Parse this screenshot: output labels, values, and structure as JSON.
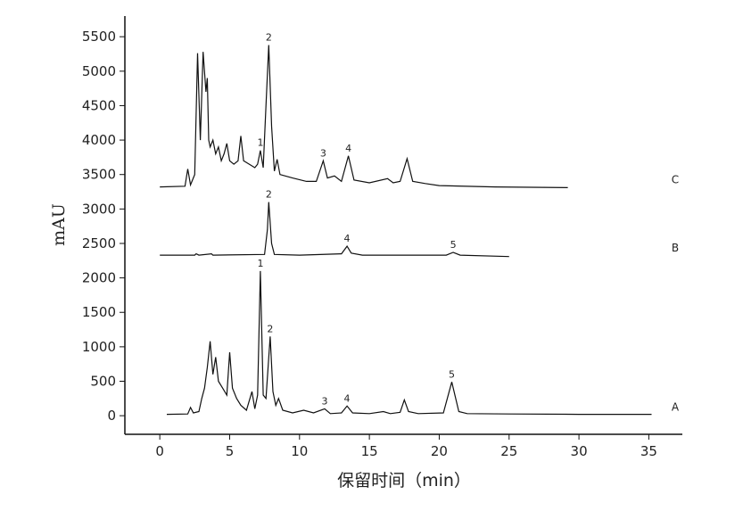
{
  "chart_data": {
    "type": "line",
    "x_label": "保留时间（min）",
    "y_label": "mAU",
    "xlim": [
      -2.5,
      37.4
    ],
    "ylim": [
      -270,
      5800
    ],
    "xticks": [
      0,
      5,
      10,
      15,
      20,
      25,
      30,
      35
    ],
    "yticks": [
      0,
      500,
      1000,
      1500,
      2000,
      2500,
      3000,
      3500,
      4000,
      4500,
      5000,
      5500
    ],
    "series": [
      {
        "name": "A",
        "color": "#111111",
        "x": [
          0.5,
          2.0,
          2.2,
          2.4,
          2.8,
          3.0,
          3.2,
          3.4,
          3.6,
          3.8,
          4.0,
          4.2,
          4.5,
          4.8,
          5.0,
          5.2,
          5.5,
          5.8,
          6.2,
          6.6,
          6.8,
          7.0,
          7.2,
          7.4,
          7.6,
          7.9,
          8.1,
          8.3,
          8.5,
          8.8,
          9.5,
          10.3,
          11.0,
          11.8,
          12.2,
          13.0,
          13.4,
          13.8,
          15.0,
          16.0,
          16.5,
          17.2,
          17.5,
          17.8,
          18.5,
          20.3,
          20.9,
          21.4,
          22.0,
          25.0,
          30.0,
          35.2
        ],
        "values": [
          20,
          25,
          120,
          40,
          60,
          250,
          400,
          700,
          1080,
          600,
          850,
          500,
          400,
          300,
          920,
          400,
          250,
          150,
          80,
          350,
          100,
          300,
          2100,
          300,
          250,
          1150,
          350,
          150,
          250,
          80,
          40,
          80,
          40,
          100,
          30,
          40,
          140,
          40,
          30,
          60,
          30,
          50,
          230,
          60,
          30,
          40,
          490,
          60,
          30,
          25,
          20,
          20
        ],
        "peak_labels": [
          {
            "text": "1",
            "x": 7.2
          },
          {
            "text": "2",
            "x": 7.9
          },
          {
            "text": "3",
            "x": 11.8
          },
          {
            "text": "4",
            "x": 13.4
          },
          {
            "text": "5",
            "x": 20.9
          }
        ]
      },
      {
        "name": "B",
        "color": "#111111",
        "x": [
          0,
          2.5,
          2.6,
          2.8,
          3.7,
          3.8,
          7.5,
          7.7,
          7.8,
          8.0,
          8.2,
          10,
          13,
          13.4,
          13.7,
          14.5,
          20.5,
          21,
          21.5,
          25
        ],
        "values": [
          2330,
          2330,
          2350,
          2330,
          2350,
          2330,
          2340,
          2700,
          3100,
          2500,
          2340,
          2330,
          2350,
          2460,
          2360,
          2330,
          2330,
          2370,
          2330,
          2310
        ],
        "peak_labels": [
          {
            "text": "2",
            "x": 7.8
          },
          {
            "text": "4",
            "x": 13.4
          },
          {
            "text": "5",
            "x": 21
          }
        ]
      },
      {
        "name": "C",
        "color": "#111111",
        "x": [
          0,
          1.8,
          2.0,
          2.2,
          2.5,
          2.7,
          2.9,
          3.1,
          3.3,
          3.4,
          3.5,
          3.6,
          3.8,
          4.0,
          4.2,
          4.4,
          4.6,
          4.8,
          5.0,
          5.3,
          5.6,
          5.8,
          6.0,
          6.4,
          6.8,
          7.0,
          7.2,
          7.4,
          7.6,
          7.8,
          8.0,
          8.2,
          8.4,
          8.6,
          9.5,
          10.5,
          11.2,
          11.7,
          12.0,
          12.5,
          13.0,
          13.5,
          13.9,
          15,
          16.3,
          16.7,
          17.2,
          17.7,
          18.1,
          19,
          20,
          24,
          29.2
        ],
        "values": [
          3320,
          3330,
          3580,
          3350,
          3500,
          5260,
          4000,
          5280,
          4700,
          4900,
          4000,
          3900,
          4000,
          3800,
          3900,
          3700,
          3800,
          3950,
          3700,
          3650,
          3700,
          4060,
          3700,
          3650,
          3600,
          3650,
          3850,
          3600,
          4500,
          5380,
          4200,
          3550,
          3720,
          3500,
          3450,
          3400,
          3400,
          3700,
          3450,
          3480,
          3400,
          3770,
          3420,
          3380,
          3440,
          3380,
          3400,
          3730,
          3400,
          3370,
          3340,
          3320,
          3310
        ],
        "peak_labels": [
          {
            "text": "1",
            "x": 7.2
          },
          {
            "text": "2",
            "x": 7.8
          },
          {
            "text": "3",
            "x": 11.7
          },
          {
            "text": "4",
            "x": 13.5
          }
        ]
      }
    ]
  }
}
